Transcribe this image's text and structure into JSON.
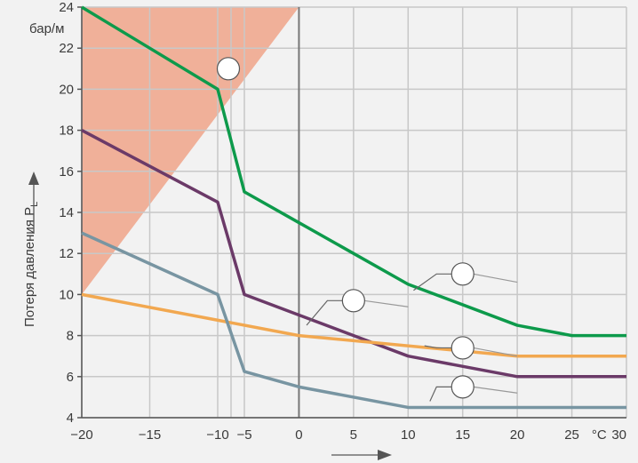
{
  "header_text": "",
  "chart_data": {
    "type": "line",
    "ylabel": "Потеря давления P",
    "ylabel_subscript": "L",
    "y_unit": "бар/м",
    "x_unit": "°C",
    "xlim": [
      -20,
      30
    ],
    "ylim": [
      4,
      24
    ],
    "x_breaks": [
      -10,
      -5,
      30
    ],
    "x_ticks": [
      {
        "value": -20,
        "label": "−20"
      },
      {
        "value": -15,
        "label": "−15"
      },
      {
        "value": -10,
        "label": "−10"
      },
      {
        "value": -5,
        "label": "−5"
      },
      {
        "value": 0,
        "label": "0"
      },
      {
        "value": 5,
        "label": "5"
      },
      {
        "value": 10,
        "label": "10"
      },
      {
        "value": 15,
        "label": "15"
      },
      {
        "value": 20,
        "label": "20"
      },
      {
        "value": 25,
        "label": "25"
      },
      {
        "value": 30,
        "label": "30"
      }
    ],
    "y_ticks": [
      {
        "value": 4,
        "label": "4"
      },
      {
        "value": 6,
        "label": "6"
      },
      {
        "value": 8,
        "label": "8"
      },
      {
        "value": 10,
        "label": "10"
      },
      {
        "value": 12,
        "label": "12"
      },
      {
        "value": 14,
        "label": "14"
      },
      {
        "value": 16,
        "label": "16"
      },
      {
        "value": 18,
        "label": "18"
      },
      {
        "value": 20,
        "label": "20"
      },
      {
        "value": 22,
        "label": "22"
      },
      {
        "value": 24,
        "label": "24"
      }
    ],
    "grid": true,
    "series": [
      {
        "color": "#0d9a4b",
        "points": [
          [
            -20,
            24
          ],
          [
            -10,
            20
          ],
          [
            -5,
            15
          ],
          [
            0,
            13.5
          ],
          [
            10,
            10.5
          ],
          [
            20,
            8.5
          ],
          [
            25,
            8
          ],
          [
            30,
            8
          ]
        ]
      },
      {
        "color": "#6b3a68",
        "points": [
          [
            -20,
            18
          ],
          [
            -10,
            14.5
          ],
          [
            -5,
            10
          ],
          [
            0,
            9
          ],
          [
            10,
            7
          ],
          [
            20,
            6
          ],
          [
            30,
            6
          ]
        ]
      },
      {
        "color": "#f2a850",
        "points": [
          [
            -20,
            10
          ],
          [
            0,
            8
          ],
          [
            20,
            7
          ],
          [
            30,
            7
          ]
        ]
      },
      {
        "color": "#7895a2",
        "points": [
          [
            -20,
            13
          ],
          [
            -10,
            10
          ],
          [
            -5,
            6.25
          ],
          [
            0,
            5.5
          ],
          [
            10,
            4.5
          ],
          [
            30,
            4.5
          ]
        ]
      }
    ],
    "shaded_region": {
      "color": "#f0a98f",
      "points": [
        [
          -20,
          24
        ],
        [
          0,
          24
        ],
        [
          -20,
          10
        ]
      ]
    },
    "callouts": [
      {
        "number": "",
        "at": [
          -8,
          21
        ]
      },
      {
        "number": "",
        "at": [
          15,
          11
        ]
      },
      {
        "number": "",
        "at": [
          5,
          9.7
        ]
      },
      {
        "number": "",
        "at": [
          15,
          7.4
        ]
      },
      {
        "number": "",
        "at": [
          15,
          5.5
        ]
      }
    ],
    "colors": {
      "background": "#f2f2f2",
      "grid": "#c8c8c8",
      "axis": "#555555",
      "zero_line": "#777777"
    }
  }
}
